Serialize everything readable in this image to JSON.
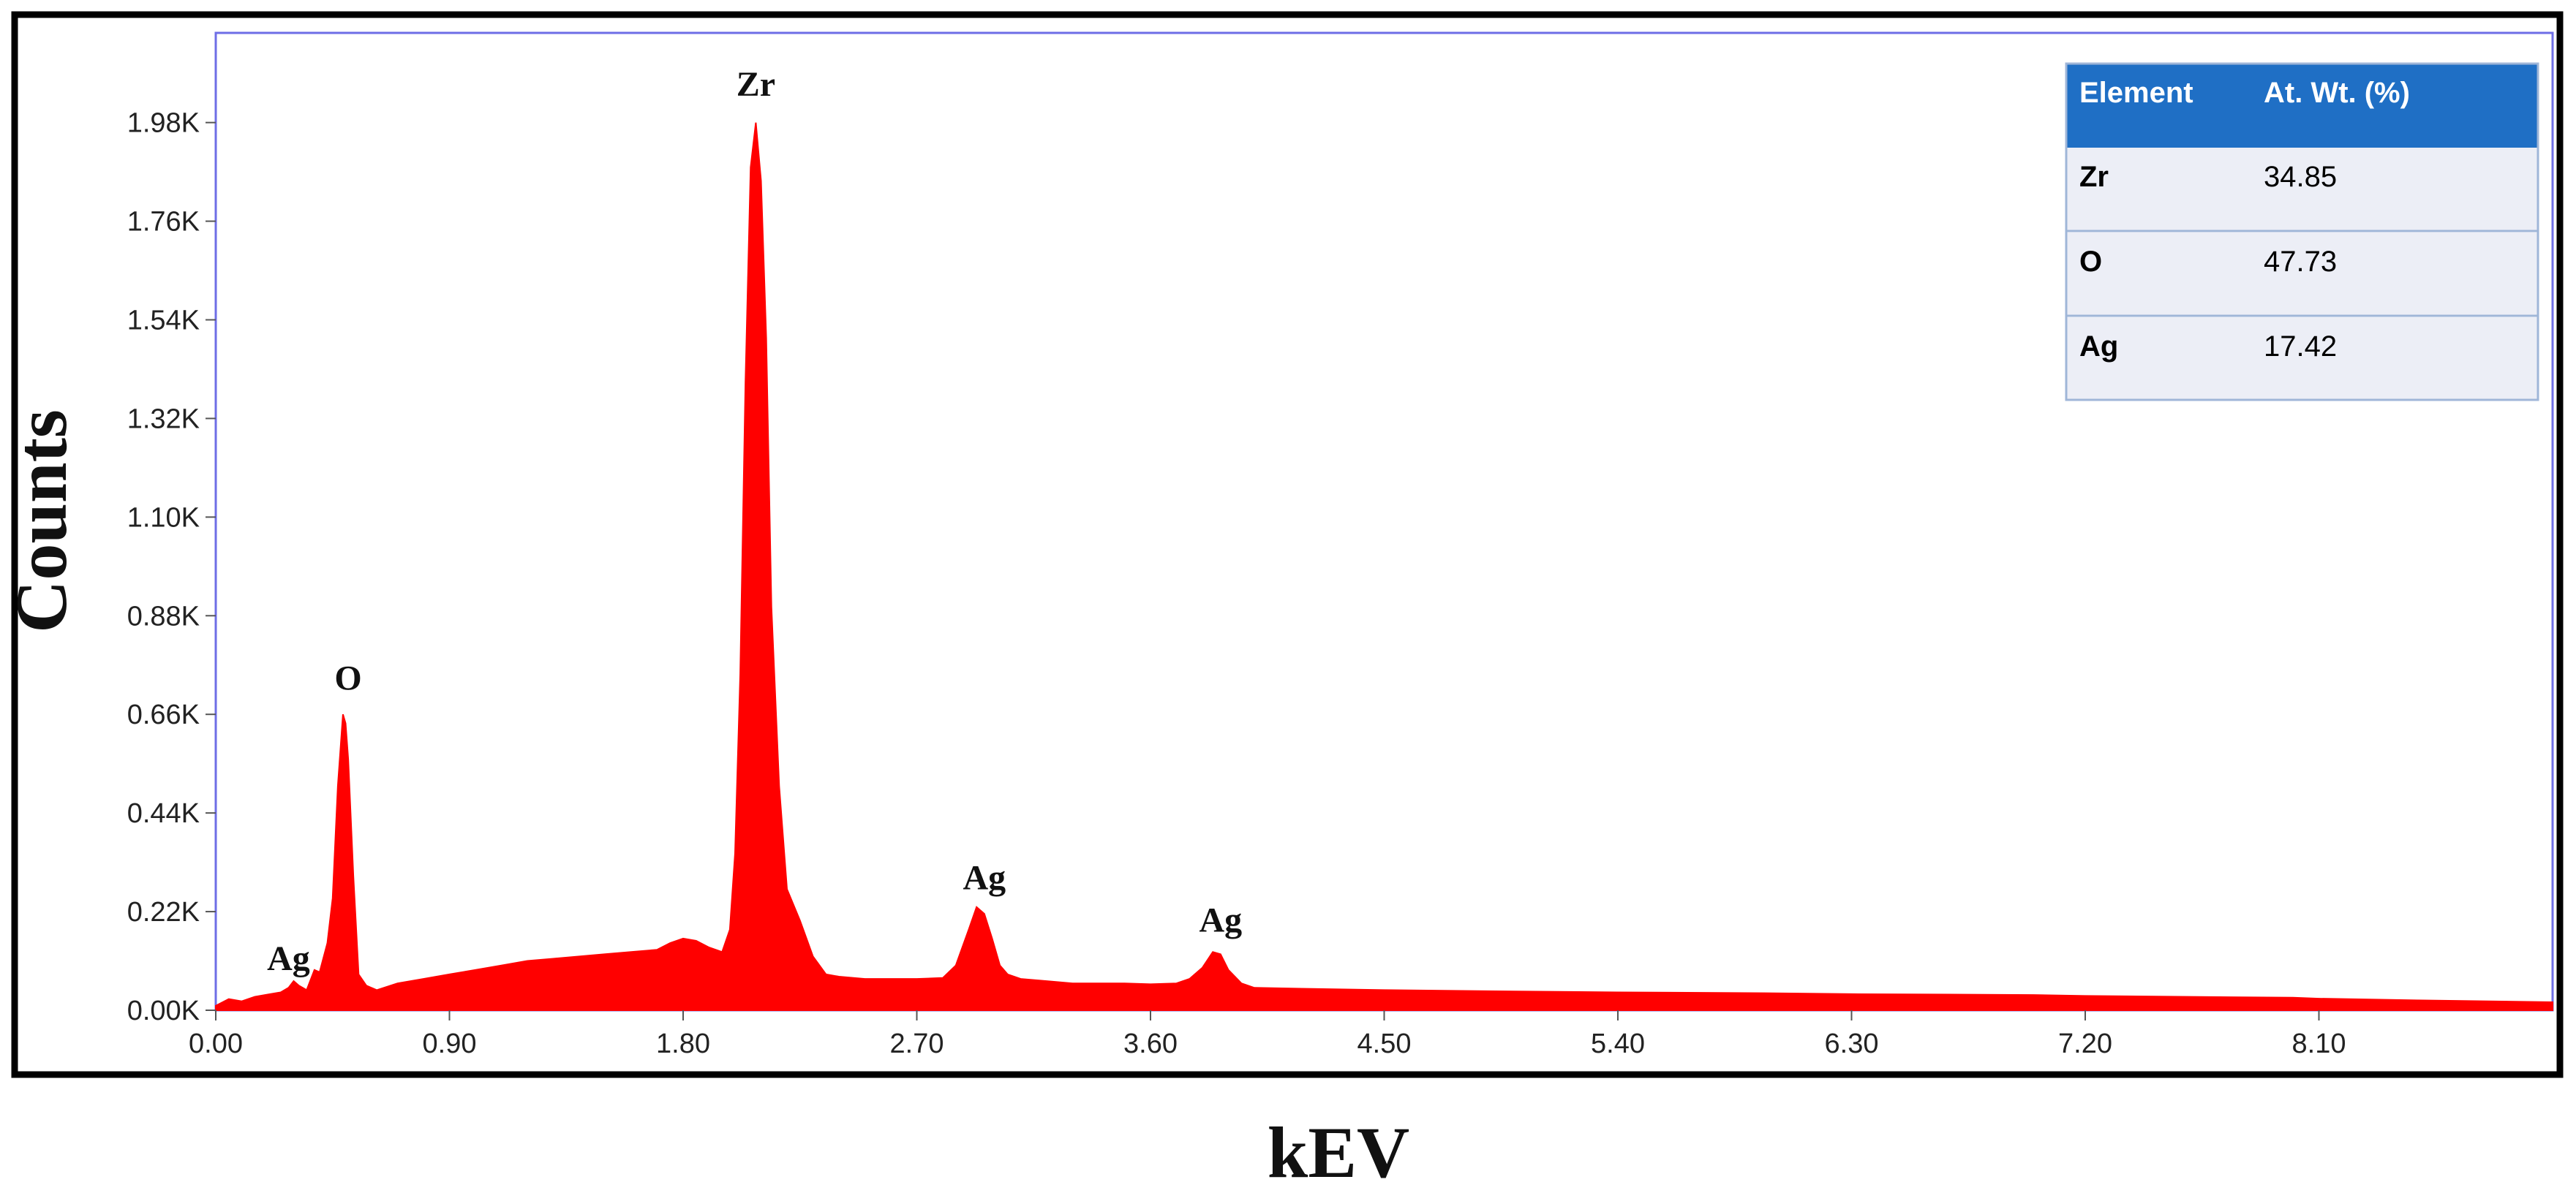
{
  "chart_data": {
    "type": "area",
    "xlabel": "kEV",
    "ylabel": "Counts",
    "xlim": [
      0,
      9.0
    ],
    "ylim": [
      0,
      2180
    ],
    "x_ticks": [
      "0.00",
      "0.90",
      "1.80",
      "2.70",
      "3.60",
      "4.50",
      "5.40",
      "6.30",
      "7.20",
      "8.10"
    ],
    "y_ticks": [
      "0.00K",
      "0.22K",
      "0.44K",
      "0.66K",
      "0.88K",
      "1.10K",
      "1.32K",
      "1.54K",
      "1.76K",
      "1.98K"
    ],
    "grid": false,
    "series": [
      {
        "color": "#ff0000",
        "x": [
          0.0,
          0.05,
          0.1,
          0.15,
          0.2,
          0.25,
          0.28,
          0.3,
          0.32,
          0.35,
          0.38,
          0.4,
          0.43,
          0.45,
          0.47,
          0.49,
          0.5,
          0.51,
          0.53,
          0.55,
          0.58,
          0.62,
          0.7,
          0.8,
          0.9,
          1.0,
          1.1,
          1.2,
          1.3,
          1.4,
          1.5,
          1.6,
          1.7,
          1.75,
          1.8,
          1.85,
          1.9,
          1.95,
          1.98,
          2.0,
          2.02,
          2.04,
          2.06,
          2.08,
          2.1,
          2.12,
          2.14,
          2.17,
          2.2,
          2.25,
          2.3,
          2.35,
          2.4,
          2.5,
          2.6,
          2.7,
          2.8,
          2.85,
          2.9,
          2.93,
          2.96,
          2.99,
          3.02,
          3.05,
          3.1,
          3.2,
          3.3,
          3.4,
          3.5,
          3.6,
          3.7,
          3.75,
          3.8,
          3.84,
          3.87,
          3.9,
          3.95,
          4.0,
          4.2,
          4.5,
          5.0,
          5.4,
          6.0,
          6.3,
          7.0,
          7.2,
          8.0,
          8.1,
          8.5,
          9.0
        ],
        "values": [
          10,
          25,
          20,
          30,
          35,
          40,
          50,
          65,
          55,
          45,
          90,
          85,
          150,
          250,
          500,
          660,
          640,
          560,
          300,
          80,
          55,
          45,
          60,
          70,
          80,
          90,
          100,
          110,
          115,
          120,
          125,
          130,
          135,
          150,
          160,
          155,
          140,
          130,
          180,
          350,
          750,
          1400,
          1880,
          1980,
          1850,
          1500,
          900,
          500,
          270,
          200,
          120,
          80,
          75,
          70,
          70,
          70,
          72,
          100,
          180,
          230,
          215,
          160,
          100,
          80,
          70,
          65,
          60,
          60,
          60,
          58,
          60,
          70,
          95,
          130,
          125,
          90,
          60,
          50,
          48,
          45,
          42,
          40,
          38,
          36,
          34,
          32,
          28,
          26,
          22,
          18
        ]
      }
    ],
    "annotations": [
      {
        "text": "Ag",
        "x": 0.28,
        "y": 90
      },
      {
        "text": "O",
        "x": 0.51,
        "y": 715
      },
      {
        "text": "Zr",
        "x": 2.08,
        "y": 2040
      },
      {
        "text": "Ag",
        "x": 2.96,
        "y": 270
      },
      {
        "text": "Ag",
        "x": 3.87,
        "y": 175
      }
    ]
  },
  "table": {
    "header": [
      "Element",
      "At. Wt. (%)"
    ],
    "rows": [
      [
        "Zr",
        "34.85"
      ],
      [
        "O",
        "47.73"
      ],
      [
        "Ag",
        "17.42"
      ]
    ],
    "header_color": "#1f6fc5",
    "row_color": "#eceef6",
    "border_color": "#9fb6d8"
  },
  "colors": {
    "spectrum": "#ff0000",
    "axis_frame": "#6e6ee6",
    "outer_border": "#000000"
  }
}
